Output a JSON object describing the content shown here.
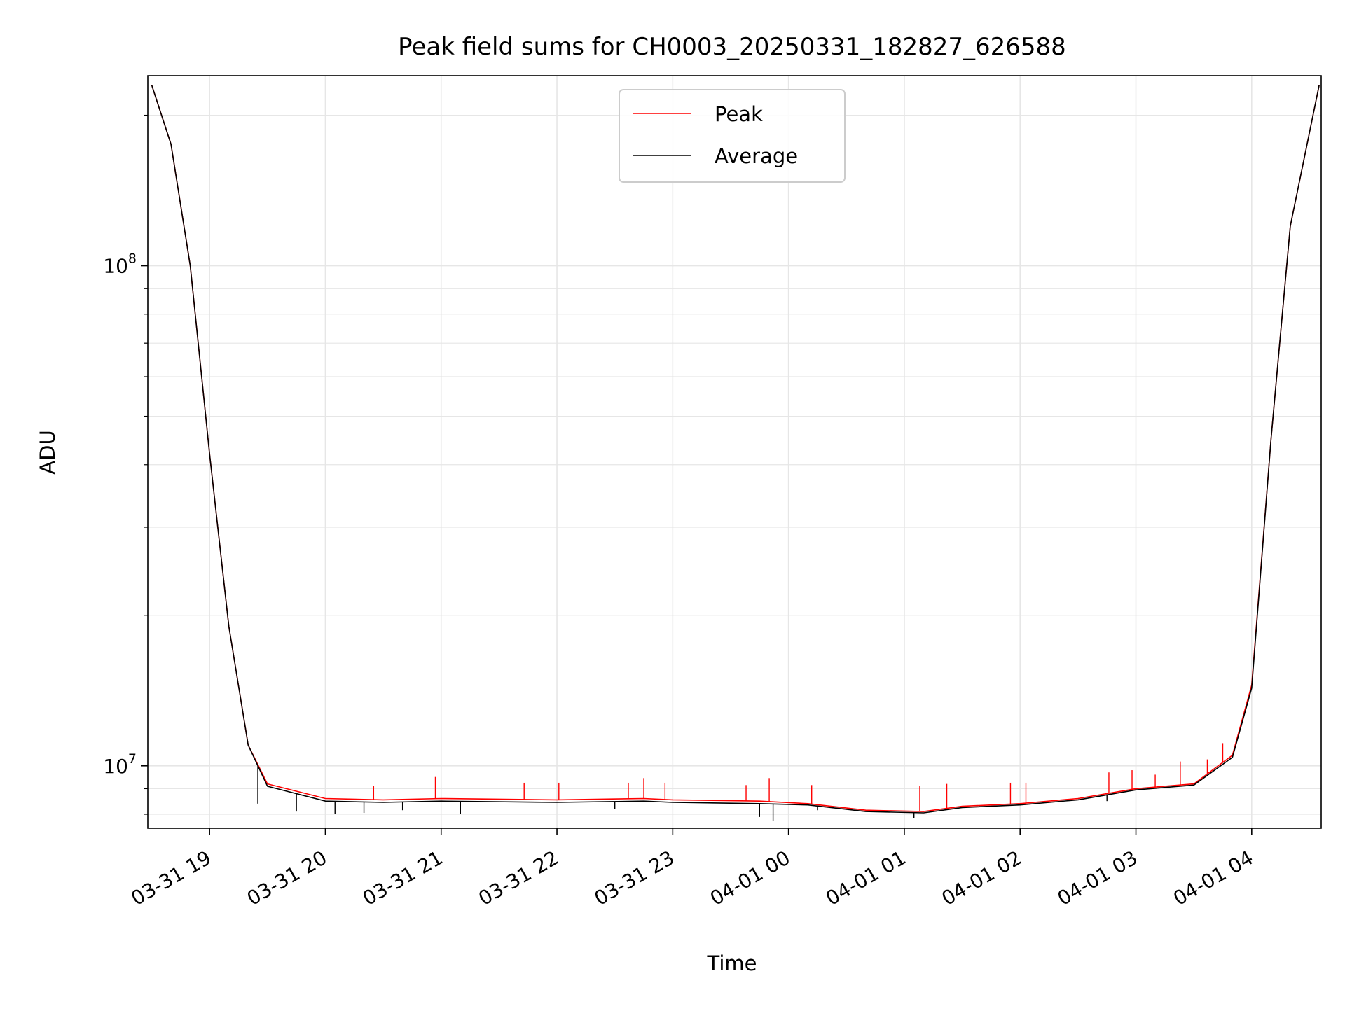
{
  "chart_data": {
    "type": "line",
    "title": "Peak field sums for CH0003_20250331_182827_626588",
    "xlabel": "Time",
    "ylabel": "ADU",
    "yscale": "log",
    "ylim": [
      7500000,
      240000000
    ],
    "xlim": [
      "2025-03-31 18:28",
      "2025-04-01 04:36"
    ],
    "grid": true,
    "legend_position": "top-center",
    "x_ticks": [
      "03-31 19",
      "03-31 20",
      "03-31 21",
      "03-31 22",
      "03-31 23",
      "04-01 00",
      "04-01 01",
      "04-01 02",
      "04-01 03",
      "04-01 04"
    ],
    "y_ticks": [
      {
        "base": "10",
        "exp": "7",
        "value": 10000000
      },
      {
        "base": "10",
        "exp": "8",
        "value": 100000000
      }
    ],
    "series": [
      {
        "name": "Peak",
        "color": "#ff0000",
        "x": [
          "2025-03-31 18:30",
          "2025-03-31 18:40",
          "2025-03-31 18:50",
          "2025-03-31 19:00",
          "2025-03-31 19:10",
          "2025-03-31 19:20",
          "2025-03-31 19:30",
          "2025-03-31 20:00",
          "2025-03-31 20:30",
          "2025-03-31 21:00",
          "2025-03-31 22:00",
          "2025-03-31 22:45",
          "2025-03-31 23:00",
          "2025-03-31 23:45",
          "2025-04-01 00:10",
          "2025-04-01 00:40",
          "2025-04-01 01:10",
          "2025-04-01 01:30",
          "2025-04-01 02:00",
          "2025-04-01 02:30",
          "2025-04-01 03:00",
          "2025-04-01 03:30",
          "2025-04-01 03:50",
          "2025-04-01 04:00",
          "2025-04-01 04:10",
          "2025-04-01 04:20",
          "2025-04-01 04:35"
        ],
        "y": [
          230000000,
          175000000,
          100000000,
          42000000,
          19000000,
          11000000,
          9200000,
          8600000,
          8550000,
          8600000,
          8550000,
          8600000,
          8550000,
          8500000,
          8400000,
          8150000,
          8100000,
          8300000,
          8400000,
          8600000,
          9000000,
          9200000,
          10500000,
          14500000,
          45000000,
          120000000,
          230000000
        ],
        "spikes": [
          {
            "x": "2025-03-31 20:25",
            "y": 9100000
          },
          {
            "x": "2025-03-31 20:57",
            "y": 9500000
          },
          {
            "x": "2025-03-31 21:43",
            "y": 9250000
          },
          {
            "x": "2025-03-31 22:01",
            "y": 9250000
          },
          {
            "x": "2025-03-31 22:37",
            "y": 9250000
          },
          {
            "x": "2025-03-31 22:45",
            "y": 9450000
          },
          {
            "x": "2025-03-31 22:56",
            "y": 9250000
          },
          {
            "x": "2025-03-31 23:38",
            "y": 9150000
          },
          {
            "x": "2025-03-31 23:50",
            "y": 9450000
          },
          {
            "x": "2025-04-01 00:12",
            "y": 9150000
          },
          {
            "x": "2025-04-01 01:08",
            "y": 9100000
          },
          {
            "x": "2025-04-01 01:22",
            "y": 9200000
          },
          {
            "x": "2025-04-01 01:55",
            "y": 9250000
          },
          {
            "x": "2025-04-01 02:03",
            "y": 9250000
          },
          {
            "x": "2025-04-01 02:46",
            "y": 9700000
          },
          {
            "x": "2025-04-01 02:58",
            "y": 9800000
          },
          {
            "x": "2025-04-01 03:10",
            "y": 9600000
          },
          {
            "x": "2025-04-01 03:23",
            "y": 10200000
          },
          {
            "x": "2025-04-01 03:37",
            "y": 10300000
          },
          {
            "x": "2025-04-01 03:45",
            "y": 11100000
          }
        ]
      },
      {
        "name": "Average",
        "color": "#000000",
        "x": [
          "2025-03-31 18:30",
          "2025-03-31 18:40",
          "2025-03-31 18:50",
          "2025-03-31 19:00",
          "2025-03-31 19:10",
          "2025-03-31 19:20",
          "2025-03-31 19:30",
          "2025-03-31 20:00",
          "2025-03-31 20:30",
          "2025-03-31 21:00",
          "2025-03-31 22:00",
          "2025-03-31 22:45",
          "2025-03-31 23:00",
          "2025-03-31 23:45",
          "2025-04-01 00:10",
          "2025-04-01 00:40",
          "2025-04-01 01:10",
          "2025-04-01 01:30",
          "2025-04-01 02:00",
          "2025-04-01 02:30",
          "2025-04-01 03:00",
          "2025-04-01 03:30",
          "2025-04-01 03:50",
          "2025-04-01 04:00",
          "2025-04-01 04:10",
          "2025-04-01 04:20",
          "2025-04-01 04:35"
        ],
        "y": [
          230000000,
          175000000,
          100000000,
          42000000,
          19000000,
          11000000,
          9100000,
          8500000,
          8450000,
          8500000,
          8450000,
          8500000,
          8450000,
          8400000,
          8350000,
          8100000,
          8050000,
          8250000,
          8350000,
          8550000,
          8950000,
          9150000,
          10400000,
          14300000,
          45000000,
          120000000,
          230000000
        ],
        "dips": [
          {
            "x": "2025-03-31 19:25",
            "y": 8400000
          },
          {
            "x": "2025-03-31 19:45",
            "y": 8100000
          },
          {
            "x": "2025-03-31 20:05",
            "y": 8000000
          },
          {
            "x": "2025-03-31 20:20",
            "y": 8050000
          },
          {
            "x": "2025-03-31 20:40",
            "y": 8150000
          },
          {
            "x": "2025-03-31 21:10",
            "y": 8000000
          },
          {
            "x": "2025-03-31 22:30",
            "y": 8200000
          },
          {
            "x": "2025-03-31 23:45",
            "y": 7900000
          },
          {
            "x": "2025-03-31 23:52",
            "y": 7750000
          },
          {
            "x": "2025-04-01 00:15",
            "y": 8150000
          },
          {
            "x": "2025-04-01 01:05",
            "y": 7850000
          },
          {
            "x": "2025-04-01 02:45",
            "y": 8500000
          }
        ]
      }
    ]
  }
}
